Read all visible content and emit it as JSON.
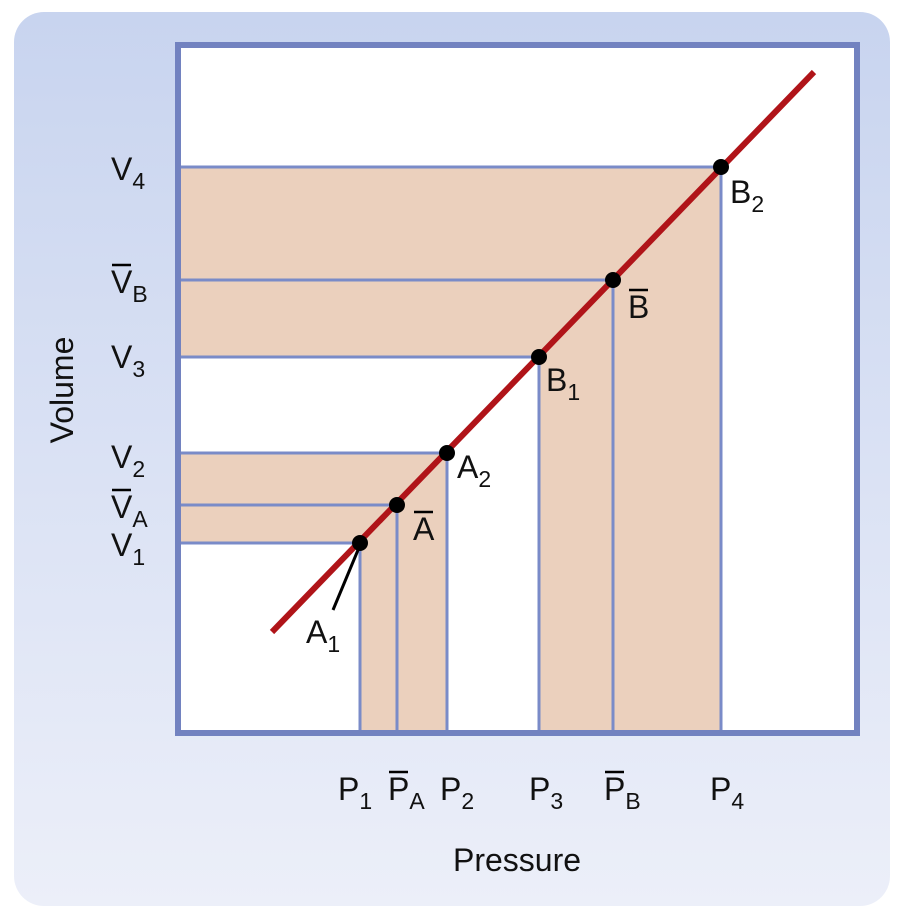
{
  "axes": {
    "x_label": "Pressure",
    "y_label": "Volume"
  },
  "colors": {
    "curve": "#b01419",
    "frame": "#7282c0",
    "shade": "#ebd0bd",
    "guide": "#7a8bc8",
    "point": "#000000"
  },
  "y_ticks": [
    {
      "main": "V",
      "sub": "4",
      "bar": false
    },
    {
      "main": "V",
      "sub": "B",
      "bar": true
    },
    {
      "main": "V",
      "sub": "3",
      "bar": false
    },
    {
      "main": "V",
      "sub": "2",
      "bar": false
    },
    {
      "main": "V",
      "sub": "A",
      "bar": true
    },
    {
      "main": "V",
      "sub": "1",
      "bar": false
    }
  ],
  "x_ticks": [
    {
      "main": "P",
      "sub": "1",
      "bar": false
    },
    {
      "main": "P",
      "sub": "A",
      "bar": true
    },
    {
      "main": "P",
      "sub": "2",
      "bar": false
    },
    {
      "main": "P",
      "sub": "3",
      "bar": false
    },
    {
      "main": "P",
      "sub": "B",
      "bar": true
    },
    {
      "main": "P",
      "sub": "4",
      "bar": false
    }
  ],
  "points": [
    {
      "main": "A",
      "sub": "1",
      "bar": false
    },
    {
      "main": "A",
      "sub": "",
      "bar": true
    },
    {
      "main": "A",
      "sub": "2",
      "bar": false
    },
    {
      "main": "B",
      "sub": "1",
      "bar": false
    },
    {
      "main": "B",
      "sub": "",
      "bar": true
    },
    {
      "main": "B",
      "sub": "2",
      "bar": false
    }
  ]
}
